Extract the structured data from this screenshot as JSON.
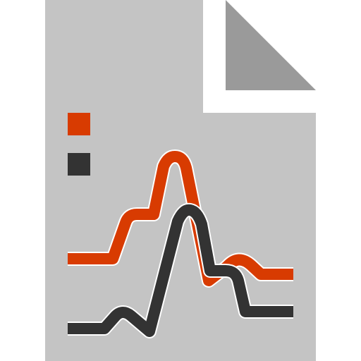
{
  "icon": {
    "name": "chart-document-file-icon",
    "colors": {
      "page": "#c4c4c4",
      "fold": "#9a9a9a",
      "series_a": "#d83b01",
      "series_b": "#333333",
      "outline": "#ffffff"
    }
  }
}
